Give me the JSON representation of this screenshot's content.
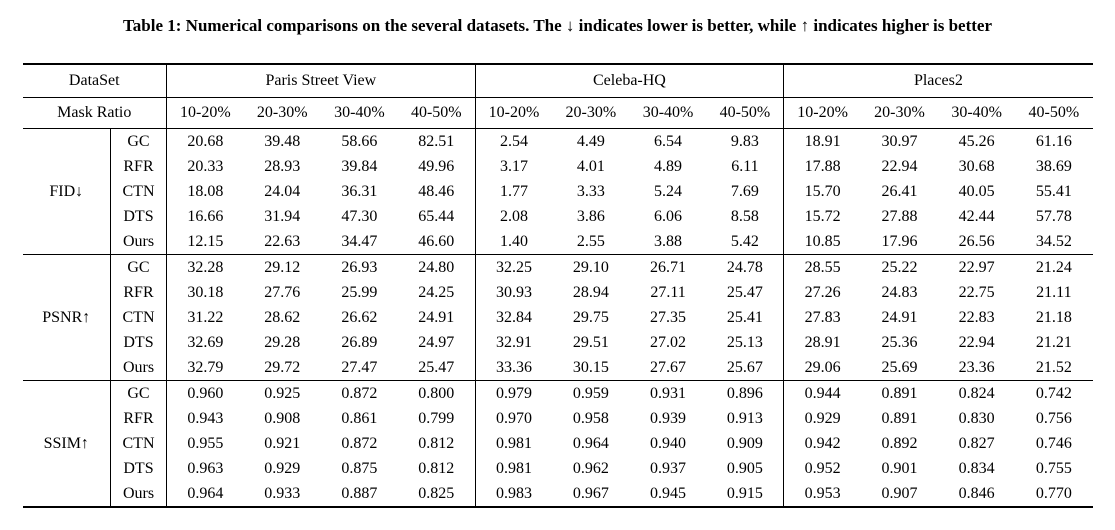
{
  "caption": "Table 1: Numerical comparisons on the several datasets. The ↓ indicates lower is better, while ↑ indicates higher is better",
  "table": {
    "header": {
      "dataset_label": "DataSet",
      "mask_ratio_label": "Mask Ratio",
      "dataset_groups": [
        "Paris Street View",
        "Celeba-HQ",
        "Places2"
      ],
      "mask_ratios": [
        "10-20%",
        "20-30%",
        "30-40%",
        "40-50%"
      ]
    },
    "sections": [
      {
        "metric": "FID↓",
        "rows": [
          {
            "method": "GC",
            "bold": false,
            "values": [
              "20.68",
              "39.48",
              "58.66",
              "82.51",
              "2.54",
              "4.49",
              "6.54",
              "9.83",
              "18.91",
              "30.97",
              "45.26",
              "61.16"
            ]
          },
          {
            "method": "RFR",
            "bold": false,
            "values": [
              "20.33",
              "28.93",
              "39.84",
              "49.96",
              "3.17",
              "4.01",
              "4.89",
              "6.11",
              "17.88",
              "22.94",
              "30.68",
              "38.69"
            ]
          },
          {
            "method": "CTN",
            "bold": false,
            "values": [
              "18.08",
              "24.04",
              "36.31",
              "48.46",
              "1.77",
              "3.33",
              "5.24",
              "7.69",
              "15.70",
              "26.41",
              "40.05",
              "55.41"
            ]
          },
          {
            "method": "DTS",
            "bold": false,
            "values": [
              "16.66",
              "31.94",
              "47.30",
              "65.44",
              "2.08",
              "3.86",
              "6.06",
              "8.58",
              "15.72",
              "27.88",
              "42.44",
              "57.78"
            ]
          },
          {
            "method": "Ours",
            "bold": true,
            "values": [
              "12.15",
              "22.63",
              "34.47",
              "46.60",
              "1.40",
              "2.55",
              "3.88",
              "5.42",
              "10.85",
              "17.96",
              "26.56",
              "34.52"
            ]
          }
        ]
      },
      {
        "metric": "PSNR↑",
        "rows": [
          {
            "method": "GC",
            "bold": false,
            "values": [
              "32.28",
              "29.12",
              "26.93",
              "24.80",
              "32.25",
              "29.10",
              "26.71",
              "24.78",
              "28.55",
              "25.22",
              "22.97",
              "21.24"
            ]
          },
          {
            "method": "RFR",
            "bold": false,
            "values": [
              "30.18",
              "27.76",
              "25.99",
              "24.25",
              "30.93",
              "28.94",
              "27.11",
              "25.47",
              "27.26",
              "24.83",
              "22.75",
              "21.11"
            ]
          },
          {
            "method": "CTN",
            "bold": false,
            "values": [
              "31.22",
              "28.62",
              "26.62",
              "24.91",
              "32.84",
              "29.75",
              "27.35",
              "25.41",
              "27.83",
              "24.91",
              "22.83",
              "21.18"
            ]
          },
          {
            "method": "DTS",
            "bold": false,
            "values": [
              "32.69",
              "29.28",
              "26.89",
              "24.97",
              "32.91",
              "29.51",
              "27.02",
              "25.13",
              "28.91",
              "25.36",
              "22.94",
              "21.21"
            ]
          },
          {
            "method": "Ours",
            "bold": true,
            "values": [
              "32.79",
              "29.72",
              "27.47",
              "25.47",
              "33.36",
              "30.15",
              "27.67",
              "25.67",
              "29.06",
              "25.69",
              "23.36",
              "21.52"
            ]
          }
        ]
      },
      {
        "metric": "SSIM↑",
        "rows": [
          {
            "method": "GC",
            "bold": false,
            "values": [
              "0.960",
              "0.925",
              "0.872",
              "0.800",
              "0.979",
              "0.959",
              "0.931",
              "0.896",
              "0.944",
              "0.891",
              "0.824",
              "0.742"
            ]
          },
          {
            "method": "RFR",
            "bold": false,
            "values": [
              "0.943",
              "0.908",
              "0.861",
              "0.799",
              "0.970",
              "0.958",
              "0.939",
              "0.913",
              "0.929",
              "0.891",
              "0.830",
              "0.756"
            ]
          },
          {
            "method": "CTN",
            "bold": false,
            "values": [
              "0.955",
              "0.921",
              "0.872",
              "0.812",
              "0.981",
              "0.964",
              "0.940",
              "0.909",
              "0.942",
              "0.892",
              "0.827",
              "0.746"
            ]
          },
          {
            "method": "DTS",
            "bold": false,
            "values": [
              "0.963",
              "0.929",
              "0.875",
              "0.812",
              "0.981",
              "0.962",
              "0.937",
              "0.905",
              "0.952",
              "0.901",
              "0.834",
              "0.755"
            ]
          },
          {
            "method": "Ours",
            "bold": true,
            "values": [
              "0.964",
              "0.933",
              "0.887",
              "0.825",
              "0.983",
              "0.967",
              "0.945",
              "0.915",
              "0.953",
              "0.907",
              "0.846",
              "0.770"
            ]
          }
        ]
      }
    ]
  }
}
